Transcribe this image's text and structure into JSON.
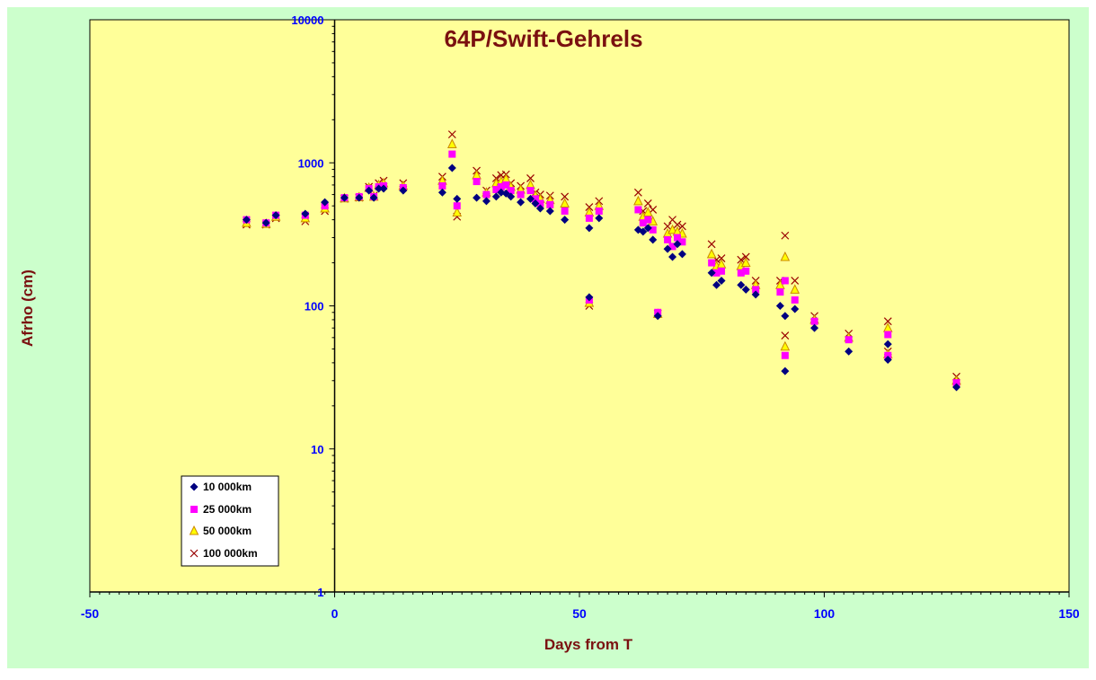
{
  "colors": {
    "outer_background": "#ccffcc",
    "plot_background": "#ffff99",
    "title_color": "#7a1010",
    "tick_color": "#0000ff",
    "series_10000": "#000080",
    "series_25000": "#ff00ff",
    "series_50000": "#cc8800",
    "series_100000": "#990000"
  },
  "chart_data": {
    "type": "scatter",
    "title": "64P/Swift-Gehrels",
    "xlabel": "Days from T",
    "ylabel": "Afrho (cm)",
    "xlim": [
      -50,
      150
    ],
    "ylim": [
      1,
      10000
    ],
    "yscale": "log",
    "xticks": [
      "-50",
      "0",
      "50",
      "100",
      "150"
    ],
    "yticks": [
      "1",
      "10",
      "100",
      "1000",
      "10000"
    ],
    "grid": false,
    "legend_position": "bottom-left",
    "series": [
      {
        "name": "10 000km",
        "marker": "diamond",
        "points": [
          [
            -18,
            400
          ],
          [
            -14,
            380
          ],
          [
            -12,
            430
          ],
          [
            -6,
            440
          ],
          [
            -2,
            530
          ],
          [
            2,
            570
          ],
          [
            5,
            570
          ],
          [
            7,
            640
          ],
          [
            8,
            570
          ],
          [
            9,
            660
          ],
          [
            10,
            660
          ],
          [
            14,
            640
          ],
          [
            22,
            620
          ],
          [
            24,
            920
          ],
          [
            25,
            560
          ],
          [
            29,
            570
          ],
          [
            31,
            540
          ],
          [
            33,
            580
          ],
          [
            34,
            620
          ],
          [
            35,
            610
          ],
          [
            36,
            580
          ],
          [
            38,
            530
          ],
          [
            40,
            560
          ],
          [
            41,
            520
          ],
          [
            42,
            480
          ],
          [
            44,
            460
          ],
          [
            47,
            400
          ],
          [
            52,
            350
          ],
          [
            52,
            115
          ],
          [
            54,
            410
          ],
          [
            62,
            340
          ],
          [
            63,
            330
          ],
          [
            64,
            350
          ],
          [
            65,
            290
          ],
          [
            66,
            85
          ],
          [
            68,
            250
          ],
          [
            69,
            220
          ],
          [
            70,
            270
          ],
          [
            71,
            230
          ],
          [
            77,
            170
          ],
          [
            78,
            140
          ],
          [
            79,
            150
          ],
          [
            83,
            140
          ],
          [
            84,
            130
          ],
          [
            86,
            120
          ],
          [
            91,
            100
          ],
          [
            92,
            85
          ],
          [
            92,
            35
          ],
          [
            94,
            95
          ],
          [
            98,
            70
          ],
          [
            105,
            48
          ],
          [
            113,
            42
          ],
          [
            113,
            54
          ],
          [
            127,
            27
          ]
        ]
      },
      {
        "name": "25 000km",
        "marker": "square",
        "points": [
          [
            -18,
            400
          ],
          [
            -14,
            380
          ],
          [
            -12,
            430
          ],
          [
            -6,
            430
          ],
          [
            -2,
            500
          ],
          [
            2,
            570
          ],
          [
            5,
            580
          ],
          [
            7,
            660
          ],
          [
            8,
            580
          ],
          [
            9,
            680
          ],
          [
            10,
            690
          ],
          [
            14,
            670
          ],
          [
            22,
            690
          ],
          [
            24,
            1150
          ],
          [
            25,
            500
          ],
          [
            29,
            740
          ],
          [
            31,
            600
          ],
          [
            33,
            650
          ],
          [
            34,
            680
          ],
          [
            35,
            700
          ],
          [
            36,
            640
          ],
          [
            38,
            600
          ],
          [
            40,
            640
          ],
          [
            41,
            560
          ],
          [
            42,
            520
          ],
          [
            44,
            510
          ],
          [
            47,
            460
          ],
          [
            52,
            410
          ],
          [
            52,
            110
          ],
          [
            54,
            460
          ],
          [
            62,
            470
          ],
          [
            63,
            380
          ],
          [
            64,
            400
          ],
          [
            65,
            340
          ],
          [
            66,
            90
          ],
          [
            68,
            290
          ],
          [
            69,
            260
          ],
          [
            70,
            300
          ],
          [
            71,
            280
          ],
          [
            77,
            200
          ],
          [
            78,
            170
          ],
          [
            79,
            175
          ],
          [
            83,
            170
          ],
          [
            84,
            175
          ],
          [
            86,
            130
          ],
          [
            91,
            125
          ],
          [
            92,
            150
          ],
          [
            92,
            45
          ],
          [
            94,
            110
          ],
          [
            98,
            78
          ],
          [
            105,
            58
          ],
          [
            113,
            45
          ],
          [
            113,
            63
          ],
          [
            127,
            29
          ]
        ]
      },
      {
        "name": "50 000km",
        "marker": "triangle",
        "points": [
          [
            -18,
            380
          ],
          [
            -14,
            375
          ],
          [
            -12,
            420
          ],
          [
            -6,
            410
          ],
          [
            -2,
            480
          ],
          [
            2,
            565
          ],
          [
            5,
            575
          ],
          [
            7,
            670
          ],
          [
            8,
            580
          ],
          [
            9,
            700
          ],
          [
            10,
            720
          ],
          [
            14,
            690
          ],
          [
            22,
            750
          ],
          [
            24,
            1350
          ],
          [
            25,
            450
          ],
          [
            29,
            820
          ],
          [
            31,
            620
          ],
          [
            33,
            720
          ],
          [
            34,
            740
          ],
          [
            35,
            770
          ],
          [
            36,
            680
          ],
          [
            38,
            650
          ],
          [
            40,
            700
          ],
          [
            41,
            590
          ],
          [
            42,
            560
          ],
          [
            44,
            550
          ],
          [
            47,
            520
          ],
          [
            52,
            450
          ],
          [
            52,
            105
          ],
          [
            54,
            500
          ],
          [
            62,
            540
          ],
          [
            63,
            420
          ],
          [
            64,
            450
          ],
          [
            65,
            390
          ],
          [
            66,
            88
          ],
          [
            68,
            320
          ],
          [
            69,
            340
          ],
          [
            70,
            330
          ],
          [
            71,
            320
          ],
          [
            77,
            230
          ],
          [
            78,
            190
          ],
          [
            79,
            195
          ],
          [
            83,
            190
          ],
          [
            84,
            200
          ],
          [
            86,
            140
          ],
          [
            91,
            140
          ],
          [
            92,
            220
          ],
          [
            92,
            52
          ],
          [
            94,
            130
          ],
          [
            98,
            80
          ],
          [
            105,
            60
          ],
          [
            113,
            46
          ],
          [
            113,
            70
          ],
          [
            127,
            30
          ]
        ]
      },
      {
        "name": "100 000km",
        "marker": "cross",
        "points": [
          [
            -18,
            370
          ],
          [
            -14,
            370
          ],
          [
            -12,
            410
          ],
          [
            -6,
            390
          ],
          [
            -2,
            460
          ],
          [
            2,
            560
          ],
          [
            5,
            570
          ],
          [
            7,
            680
          ],
          [
            8,
            590
          ],
          [
            9,
            720
          ],
          [
            10,
            750
          ],
          [
            14,
            720
          ],
          [
            22,
            800
          ],
          [
            24,
            1580
          ],
          [
            25,
            420
          ],
          [
            29,
            880
          ],
          [
            31,
            640
          ],
          [
            33,
            780
          ],
          [
            34,
            820
          ],
          [
            35,
            830
          ],
          [
            36,
            720
          ],
          [
            38,
            690
          ],
          [
            40,
            780
          ],
          [
            41,
            620
          ],
          [
            42,
            600
          ],
          [
            44,
            590
          ],
          [
            47,
            580
          ],
          [
            52,
            490
          ],
          [
            52,
            100
          ],
          [
            54,
            540
          ],
          [
            62,
            620
          ],
          [
            63,
            460
          ],
          [
            64,
            520
          ],
          [
            65,
            470
          ],
          [
            66,
            88
          ],
          [
            68,
            360
          ],
          [
            69,
            400
          ],
          [
            70,
            370
          ],
          [
            71,
            360
          ],
          [
            77,
            270
          ],
          [
            78,
            210
          ],
          [
            79,
            215
          ],
          [
            83,
            210
          ],
          [
            84,
            220
          ],
          [
            86,
            150
          ],
          [
            91,
            150
          ],
          [
            92,
            310
          ],
          [
            92,
            62
          ],
          [
            94,
            150
          ],
          [
            98,
            85
          ],
          [
            105,
            64
          ],
          [
            113,
            48
          ],
          [
            113,
            78
          ],
          [
            127,
            32
          ]
        ]
      }
    ]
  }
}
